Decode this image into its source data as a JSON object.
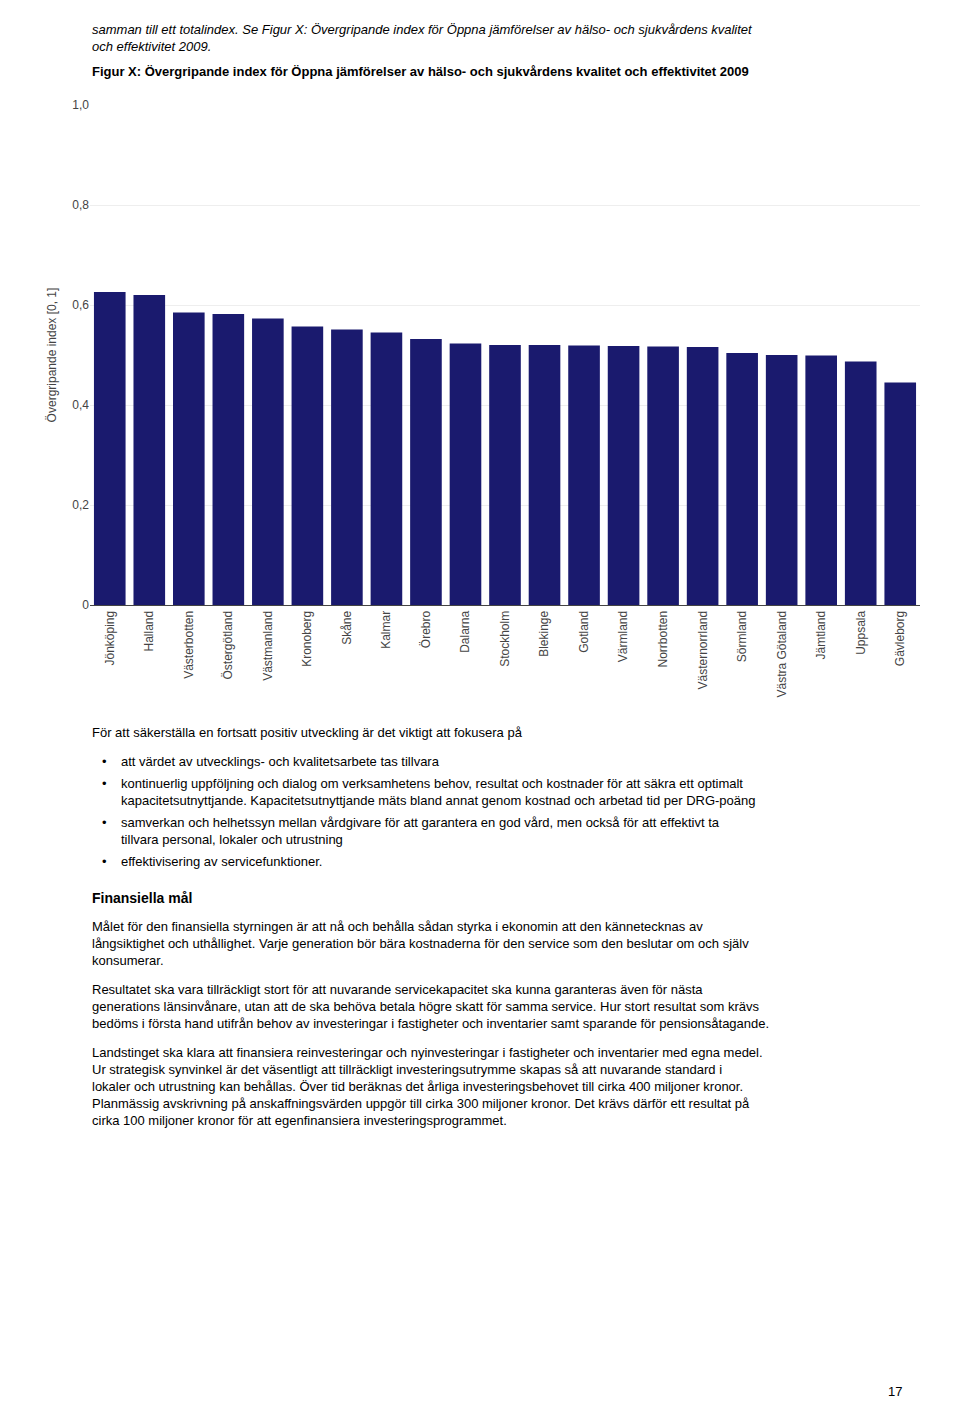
{
  "chart_data": {
    "type": "bar",
    "title": "Figur X: Övergripande index för Öppna jämförelser av hälso- och sjukvårdens kvalitet och effektivitet 2009",
    "ylabel": "Övergripande index [0, 1]",
    "categories": [
      "Jönköping",
      "Halland",
      "Västerbotten",
      "Östergötland",
      "Västmanland",
      "Kronoberg",
      "Skåne",
      "Kalmar",
      "Örebro",
      "Dalarna",
      "Stockholm",
      "Blekinge",
      "Gotland",
      "Värmland",
      "Norrbotten",
      "Västernorrland",
      "Sörmland",
      "Västra Götaland",
      "Jämtland",
      "Uppsala",
      "Gävleborg"
    ],
    "values": [
      0.626,
      0.62,
      0.585,
      0.582,
      0.573,
      0.557,
      0.551,
      0.545,
      0.532,
      0.523,
      0.52,
      0.52,
      0.519,
      0.518,
      0.517,
      0.516,
      0.504,
      0.5,
      0.499,
      0.487,
      0.445
    ],
    "color": "#1a1a6e",
    "ylim": [
      0,
      1.0
    ],
    "yticks": [
      0,
      {
        "value": 0.2,
        "label": "0,2"
      },
      {
        "value": 0.4,
        "label": "0,4"
      },
      {
        "value": 0.6,
        "label": "0,6"
      },
      {
        "value": 0.8,
        "label": "0,8"
      },
      {
        "value": 1.0,
        "label": "1,0"
      }
    ],
    "grid": true,
    "annotations": [
      "samman till ett totalindex. Se Figur X: Övergripande index för Öppna jämförelser av hälso- och sjukvårdens kvalitet och effektivitet 2009.",
      "För att säkerställa en fortsatt positiv utveckling är det viktigt att fokusera på",
      "• att värdet av utvecklings- och kvalitetsarbete tas tillvara",
      "• kontinuerlig uppföljning och dialog om verksamhetens behov, resultat och kostnader för att säkra ett optimalt kapacitetsutnyttjande. Kapacitetsutnyttjande mäts bland annat genom kostnad och arbetad tid per DRG-poäng",
      "• samverkan och helhetssyn mellan vårdgivare för att garantera en god vård, men också för att effektivt ta tillvara personal, lokaler och utrustning",
      "• effektivisering av servicefunktioner.",
      "Finansiella mål",
      "Målet för den finansiella styrningen är att nå och behålla sådan styrka i ekonomin att den kännetecknas av långsiktighet och uthållighet. Varje generation bör bära kostnaderna för den service som den beslutar om och själv konsumerar.",
      "Resultatet ska vara tillräckligt stort för att nuvarande servicekapacitet ska kunna garanteras även för nästa generations länsinvånare, utan att de ska behöva betala högre skatt för samma service. Hur stort resultat som krävs bedöms i första hand utifrån behov av investeringar i fastigheter och inventarier samt sparande för pensionsåtagande.",
      "Landstinget ska klara att finansiera reinvesteringar och nyinvesteringar i fastigheter och inventarier med egna medel. Ur strategisk synvinkel är det väsentligt att tillräckligt investeringsutrymme skapas så att nuvarande standard i lokaler och utrustning kan behållas. Över tid beräknas det årliga investeringsbehovet till cirka 400 miljoner kronor. Planmässig avskrivning på anskaffningsvärden uppgör till cirka 300 miljoner kronor. Det krävs därför ett resultat på cirka 100 miljoner kronor för att egenfinansiera investeringsprogrammet.",
      "17"
    ]
  }
}
